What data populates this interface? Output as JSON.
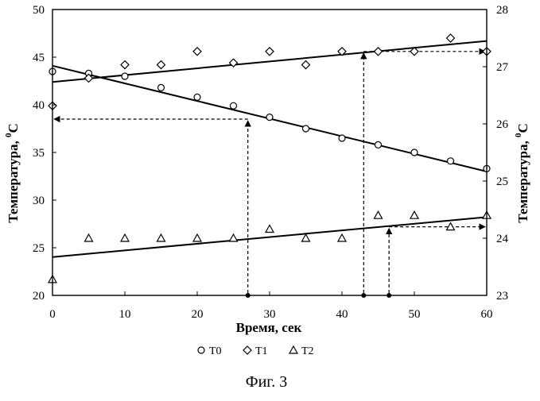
{
  "chart_data": {
    "type": "scatter",
    "caption": "Фиг. 3",
    "xlabel": "Время, сек",
    "ylabel_left": "Температура, °С",
    "ylabel_left_parts": {
      "text": "Температура, ",
      "degree": "0",
      "unit": "С"
    },
    "ylabel_right": "Температура, °С",
    "ylabel_right_parts": {
      "text": "Температура, ",
      "degree": "0",
      "unit": "С"
    },
    "xlim": [
      0,
      60
    ],
    "ylim_left": [
      20,
      50
    ],
    "ylim_right": [
      23,
      28
    ],
    "x_ticks": [
      "0",
      "10",
      "20",
      "30",
      "40",
      "50",
      "60"
    ],
    "y_left_ticks": [
      "20",
      "25",
      "30",
      "35",
      "40",
      "45",
      "50"
    ],
    "y_right_ticks": [
      "23",
      "24",
      "25",
      "26",
      "27",
      "28"
    ],
    "grid": false,
    "legend_position": "bottom",
    "series": [
      {
        "name": "T0",
        "marker": "circle",
        "axis": "left",
        "points": [
          [
            0,
            43.5
          ],
          [
            5,
            43.3
          ],
          [
            10,
            43.0
          ],
          [
            15,
            41.8
          ],
          [
            20,
            40.8
          ],
          [
            25,
            39.9
          ],
          [
            30,
            38.7
          ],
          [
            35,
            37.5
          ],
          [
            40,
            36.5
          ],
          [
            45,
            35.8
          ],
          [
            50,
            35.0
          ],
          [
            55,
            34.1
          ],
          [
            60,
            33.3
          ]
        ],
        "trend": [
          [
            0,
            44.1
          ],
          [
            60,
            33.0
          ]
        ]
      },
      {
        "name": "T1",
        "marker": "diamond",
        "axis": "left",
        "points": [
          [
            0,
            39.9
          ],
          [
            5,
            42.8
          ],
          [
            10,
            44.2
          ],
          [
            15,
            44.2
          ],
          [
            20,
            45.6
          ],
          [
            25,
            44.4
          ],
          [
            30,
            45.6
          ],
          [
            35,
            44.2
          ],
          [
            40,
            45.6
          ],
          [
            45,
            45.6
          ],
          [
            50,
            45.6
          ],
          [
            55,
            47.0
          ],
          [
            60,
            45.6
          ]
        ],
        "trend": [
          [
            0,
            42.4
          ],
          [
            60,
            46.7
          ]
        ]
      },
      {
        "name": "T2",
        "marker": "triangle",
        "axis": "right",
        "points": [
          [
            0,
            23.28
          ],
          [
            5,
            24.0
          ],
          [
            10,
            24.0
          ],
          [
            15,
            24.0
          ],
          [
            20,
            24.0
          ],
          [
            25,
            24.0
          ],
          [
            30,
            24.16
          ],
          [
            35,
            24.0
          ],
          [
            40,
            24.0
          ],
          [
            45,
            24.4
          ],
          [
            50,
            24.4
          ],
          [
            55,
            24.2
          ],
          [
            60,
            24.4
          ]
        ],
        "trend": [
          [
            0,
            23.67
          ],
          [
            60,
            24.37
          ]
        ]
      }
    ],
    "guides": [
      {
        "x": 27,
        "y": 38.5,
        "axis": "left",
        "direction": "left"
      },
      {
        "x": 43,
        "y": 45.6,
        "axis": "left",
        "direction": "right"
      },
      {
        "x": 46.5,
        "y": 24.2,
        "axis": "right",
        "direction": "right"
      }
    ]
  },
  "colors": {
    "ink": "#000000",
    "background": "#ffffff"
  }
}
